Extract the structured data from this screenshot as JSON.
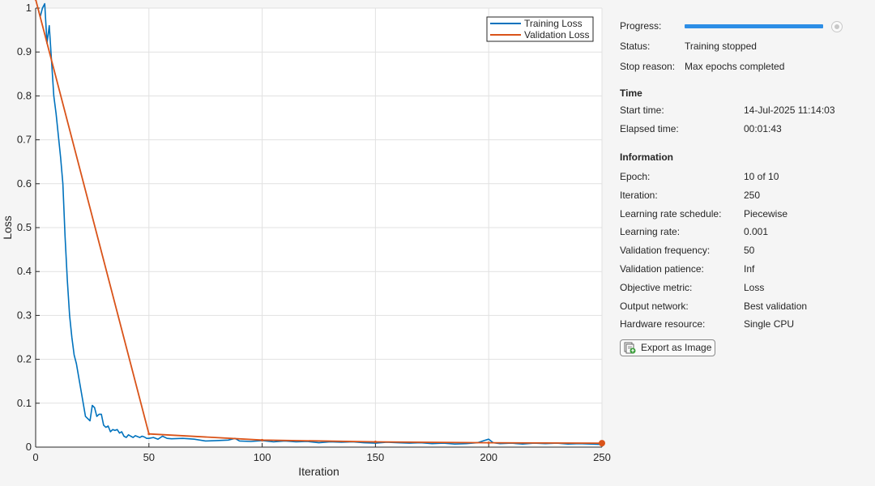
{
  "chart_data": {
    "type": "line",
    "xlabel": "Iteration",
    "ylabel": "Loss",
    "xlim": [
      0,
      250
    ],
    "ylim": [
      0,
      1
    ],
    "xticks": [
      0,
      50,
      100,
      150,
      200,
      250
    ],
    "yticks": [
      0,
      0.1,
      0.2,
      0.3,
      0.4,
      0.5,
      0.6,
      0.7,
      0.8,
      0.9,
      1
    ],
    "grid": true,
    "legend_position": "top-right",
    "series": [
      {
        "name": "Training Loss",
        "color": "#0072bd",
        "x": [
          1,
          2,
          3,
          4,
          5,
          6,
          7,
          8,
          9,
          10,
          11,
          12,
          13,
          14,
          15,
          16,
          17,
          18,
          19,
          20,
          21,
          22,
          23,
          24,
          25,
          26,
          27,
          28,
          29,
          30,
          31,
          32,
          33,
          34,
          35,
          36,
          37,
          38,
          39,
          40,
          41,
          42,
          43,
          44,
          45,
          46,
          47,
          48,
          49,
          50,
          52,
          54,
          56,
          58,
          60,
          65,
          70,
          75,
          80,
          85,
          88,
          90,
          95,
          100,
          105,
          110,
          115,
          120,
          125,
          130,
          135,
          140,
          145,
          150,
          155,
          160,
          165,
          170,
          175,
          180,
          185,
          190,
          195,
          198,
          200,
          202,
          205,
          210,
          215,
          220,
          225,
          230,
          235,
          240,
          245,
          250
        ],
        "y": [
          1.0,
          0.98,
          1.0,
          1.01,
          0.92,
          0.96,
          0.88,
          0.8,
          0.76,
          0.71,
          0.66,
          0.6,
          0.48,
          0.38,
          0.3,
          0.25,
          0.21,
          0.19,
          0.16,
          0.13,
          0.1,
          0.07,
          0.065,
          0.06,
          0.095,
          0.09,
          0.07,
          0.075,
          0.075,
          0.05,
          0.045,
          0.048,
          0.035,
          0.04,
          0.038,
          0.04,
          0.032,
          0.035,
          0.025,
          0.022,
          0.028,
          0.025,
          0.022,
          0.026,
          0.024,
          0.022,
          0.025,
          0.023,
          0.02,
          0.02,
          0.022,
          0.018,
          0.025,
          0.02,
          0.019,
          0.02,
          0.018,
          0.014,
          0.015,
          0.016,
          0.02,
          0.014,
          0.013,
          0.015,
          0.012,
          0.014,
          0.012,
          0.013,
          0.01,
          0.012,
          0.011,
          0.012,
          0.01,
          0.009,
          0.011,
          0.01,
          0.009,
          0.01,
          0.008,
          0.009,
          0.007,
          0.008,
          0.01,
          0.015,
          0.018,
          0.01,
          0.008,
          0.009,
          0.007,
          0.009,
          0.008,
          0.009,
          0.007,
          0.008,
          0.007,
          0.006
        ]
      },
      {
        "name": "Validation Loss",
        "color": "#d95319",
        "x": [
          0,
          50,
          100,
          150,
          200,
          250
        ],
        "y": [
          1.02,
          0.03,
          0.016,
          0.012,
          0.01,
          0.009
        ]
      }
    ]
  },
  "info": {
    "progress_label": "Progress:",
    "progress_fraction": 1.0,
    "status_label": "Status:",
    "status_value": "Training stopped",
    "stop_reason_label": "Stop reason:",
    "stop_reason_value": "Max epochs completed",
    "time_heading": "Time",
    "start_time_label": "Start time:",
    "start_time_value": "14-Jul-2025 11:14:03",
    "elapsed_label": "Elapsed time:",
    "elapsed_value": "00:01:43",
    "information_heading": "Information",
    "rows": [
      {
        "label": "Epoch:",
        "value": "10 of 10"
      },
      {
        "label": "Iteration:",
        "value": "250"
      },
      {
        "label": "Learning rate schedule:",
        "value": "Piecewise"
      },
      {
        "label": "Learning rate:",
        "value": "0.001"
      },
      {
        "label": "Validation frequency:",
        "value": "50"
      },
      {
        "label": "Validation patience:",
        "value": "Inf"
      },
      {
        "label": "Objective metric:",
        "value": "Loss"
      },
      {
        "label": "Output network:",
        "value": "Best validation"
      },
      {
        "label": "Hardware resource:",
        "value": "Single CPU"
      }
    ],
    "export_button_label": "Export as Image"
  }
}
